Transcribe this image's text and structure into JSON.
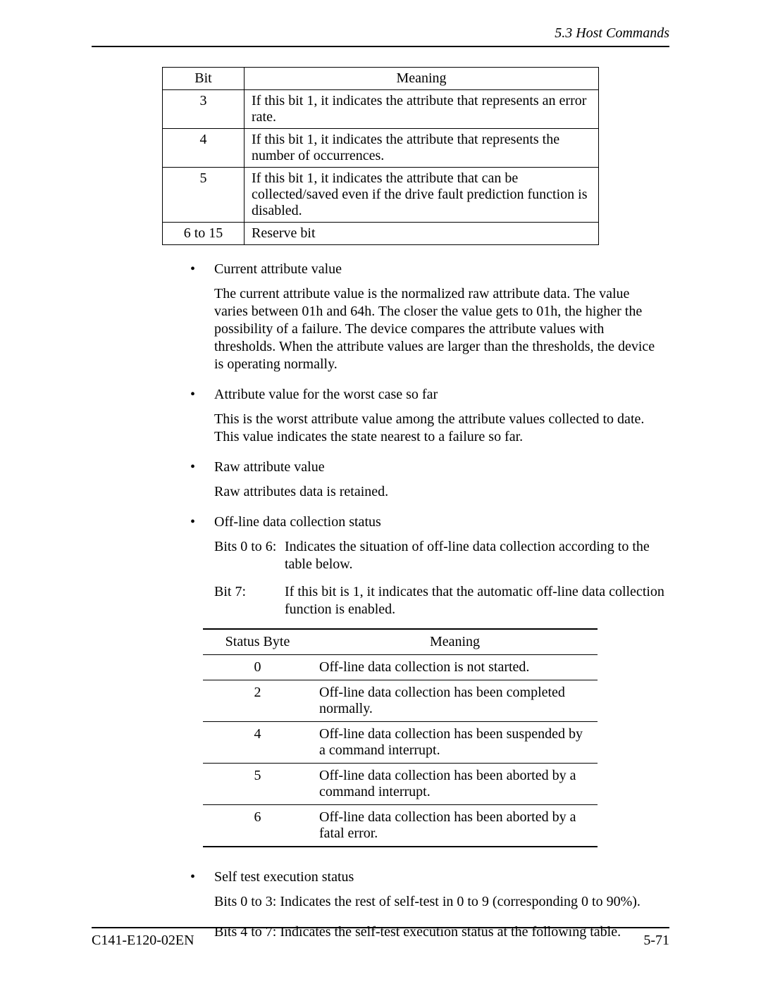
{
  "header": {
    "section": "5.3  Host Commands"
  },
  "table1": {
    "headers": [
      "Bit",
      "Meaning"
    ],
    "rows": [
      {
        "bit": "3",
        "meaning": "If this bit 1, it indicates the attribute that represents an error rate."
      },
      {
        "bit": "4",
        "meaning": "If this bit 1, it indicates the attribute that represents the number of occurrences."
      },
      {
        "bit": "5",
        "meaning": "If this bit 1, it indicates the attribute that can be collected/saved even if the drive fault prediction function is disabled."
      },
      {
        "bit": "6 to 15",
        "meaning": "Reserve bit"
      }
    ]
  },
  "bullets": {
    "b1_title": "Current attribute value",
    "b1_para": "The current attribute value is the normalized raw attribute data.  The value varies between 01h and 64h.  The closer the value gets to 01h, the higher the possibility of a failure.  The device compares the attribute values with thresholds.  When the attribute values are larger than the thresholds, the device is operating normally.",
    "b2_title": "Attribute value for the worst case so far",
    "b2_para": "This is the worst attribute value among the attribute values collected to date.  This value indicates the state nearest to a failure so far.",
    "b3_title": "Raw attribute value",
    "b3_para": "Raw attributes data is retained.",
    "b4_title": "Off-line data collection status",
    "b4_def1_label": "Bits 0 to 6:",
    "b4_def1_text": "Indicates the situation of off-line data collection according to the table below.",
    "b4_def2_label": "Bit 7:",
    "b4_def2_text": "If this bit is 1, it indicates that the automatic off-line data collection function is enabled.",
    "b5_title": "Self test execution status",
    "b5_para1": "Bits 0 to 3:  Indicates the rest of self-test in 0 to 9 (corresponding 0 to 90%).",
    "b5_para2": "Bits 4 to 7: Indicates the self-test execution status at the following table."
  },
  "table2": {
    "headers": [
      "Status Byte",
      "Meaning"
    ],
    "rows": [
      {
        "sb": "0",
        "meaning": "Off-line data collection is not started."
      },
      {
        "sb": "2",
        "meaning": "Off-line data collection has been completed normally."
      },
      {
        "sb": "4",
        "meaning": "Off-line data collection has been suspended by a command interrupt."
      },
      {
        "sb": "5",
        "meaning": "Off-line data collection has been aborted by a command interrupt."
      },
      {
        "sb": "6",
        "meaning": "Off-line data collection has been aborted by a fatal error."
      }
    ]
  },
  "footer": {
    "left": "C141-E120-02EN",
    "right": "5-71"
  }
}
